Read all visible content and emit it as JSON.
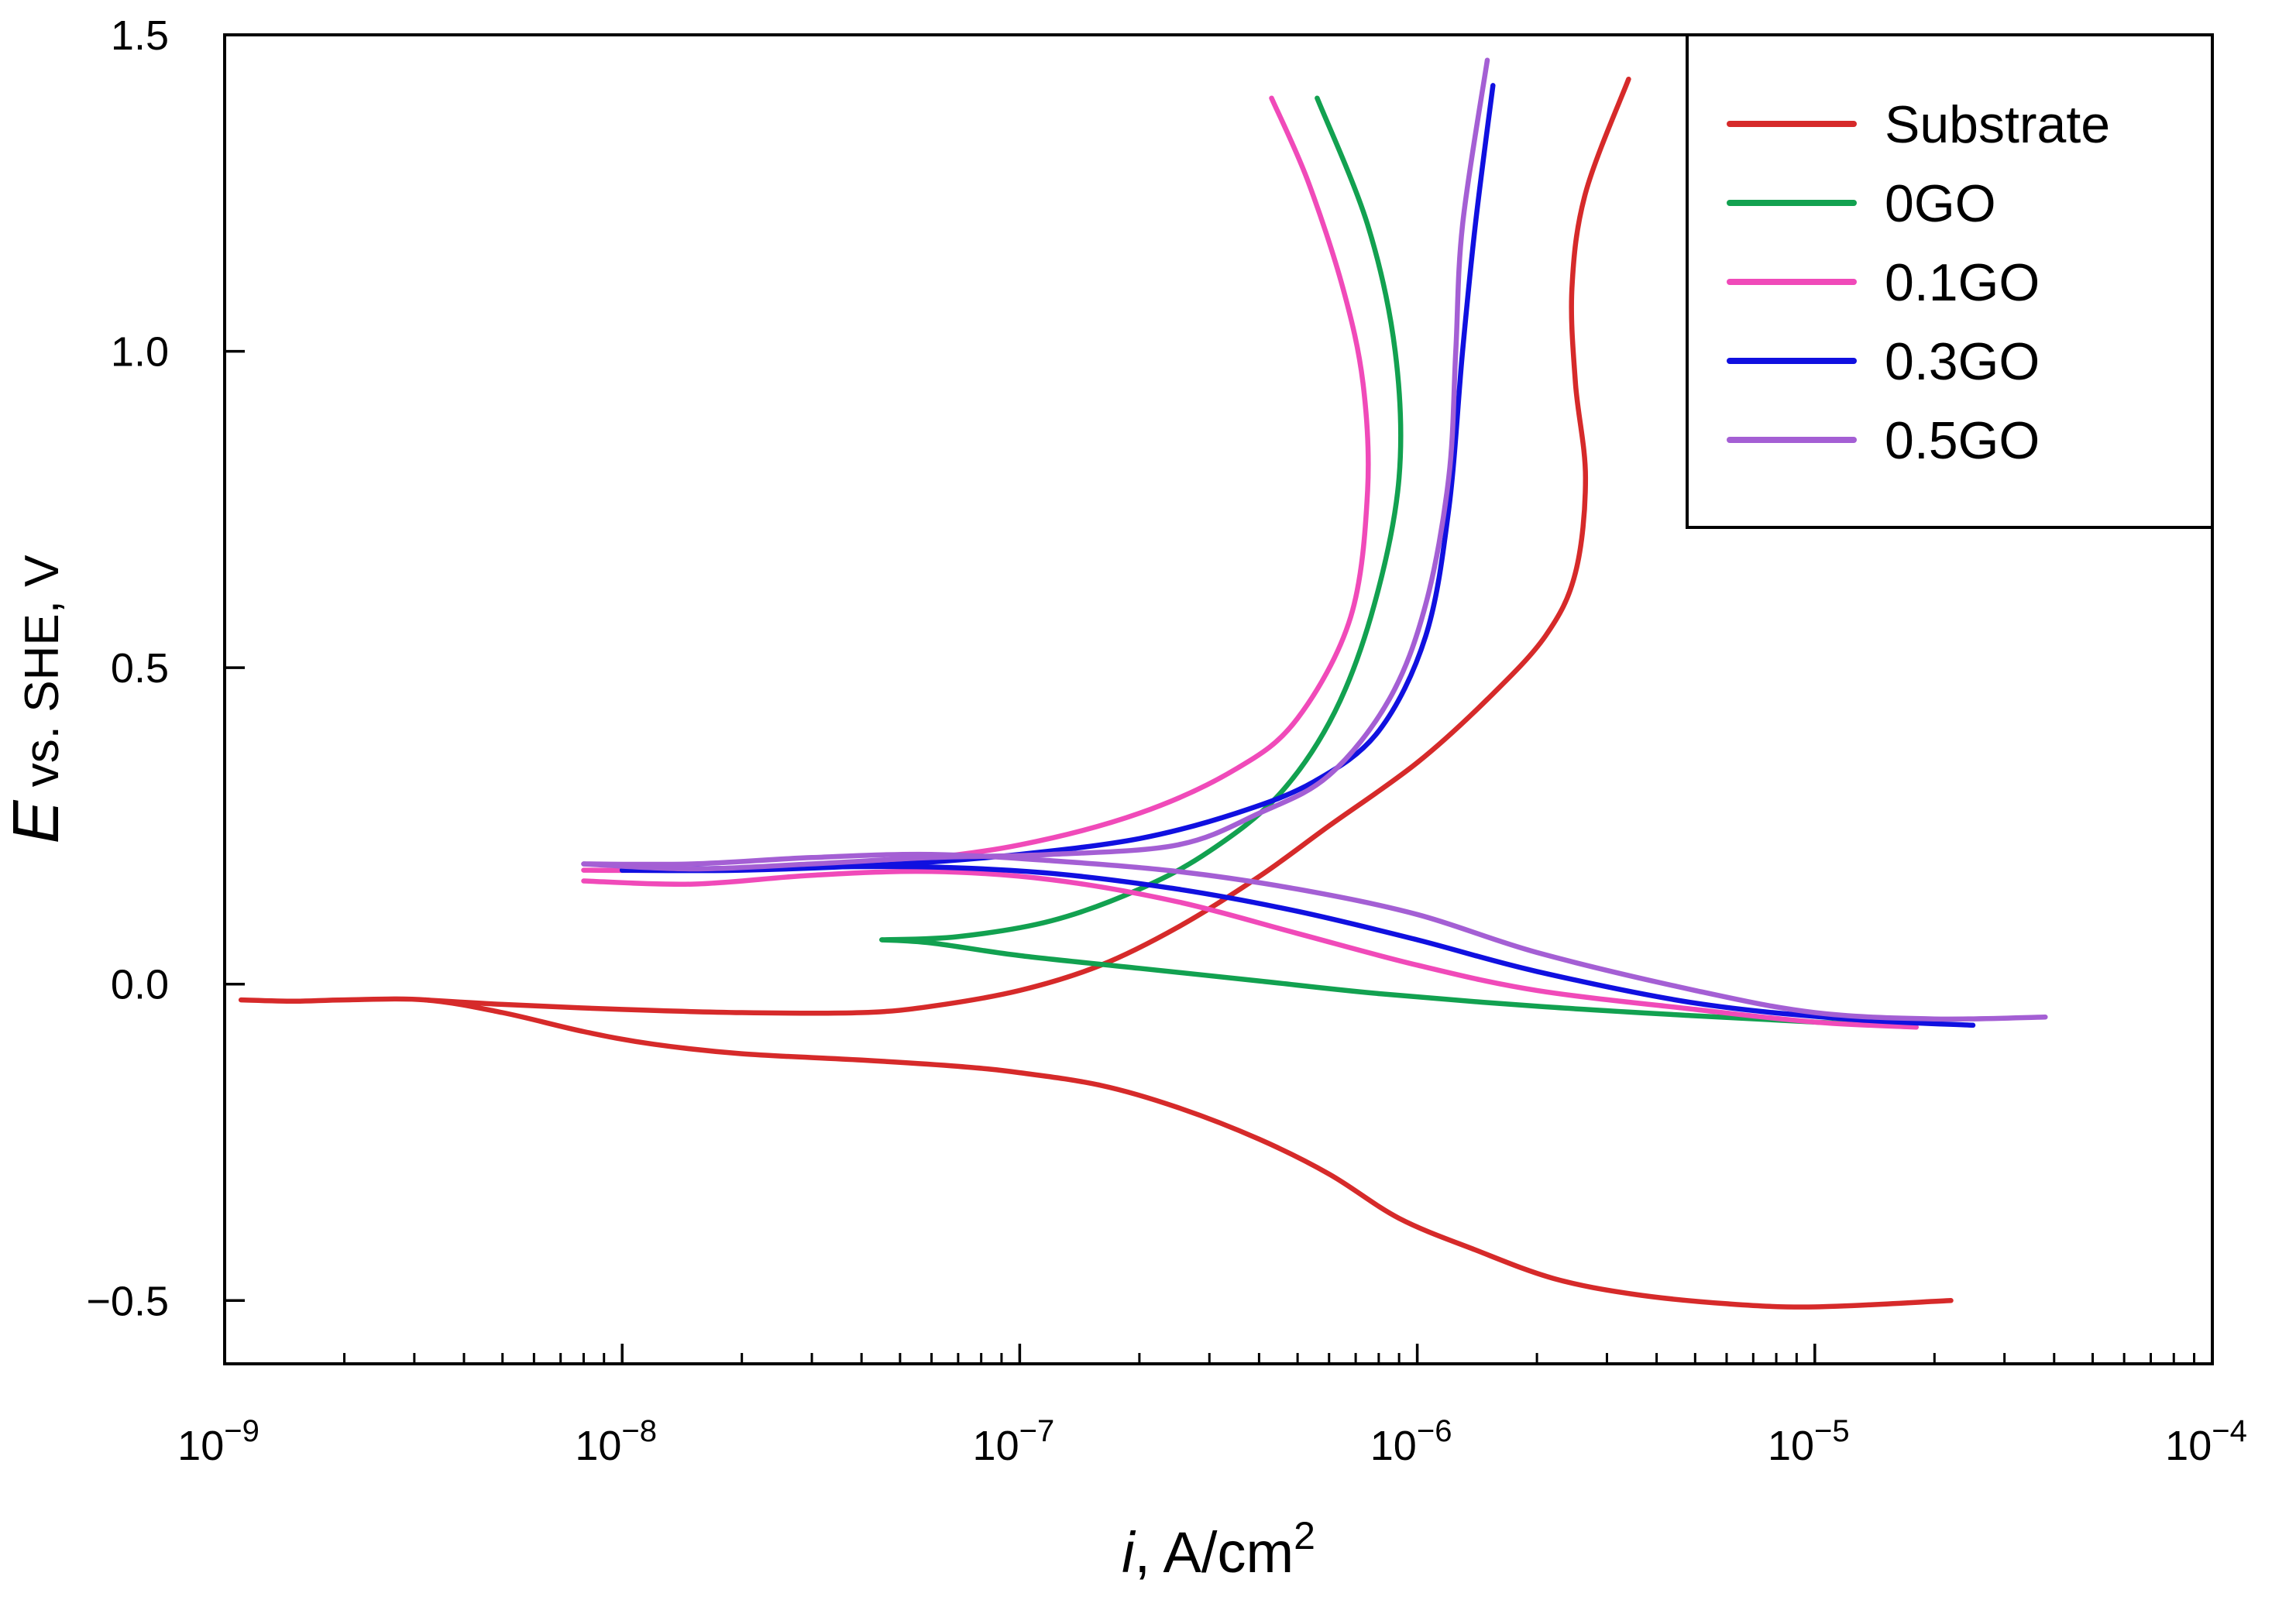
{
  "chart_data": {
    "type": "line",
    "xscale": "log",
    "xlim": [
      1e-09,
      0.0001
    ],
    "ylim": [
      -0.6,
      1.5
    ],
    "xlabel": {
      "italic": "i",
      "rest": ", A/cm",
      "sup": "2"
    },
    "ylabel": {
      "italic": "E",
      "rest": " vs. SHE, V"
    },
    "x_ticks": [
      {
        "value": 1e-09,
        "base": "10",
        "exp": "−9"
      },
      {
        "value": 1e-08,
        "base": "10",
        "exp": "−8"
      },
      {
        "value": 1e-07,
        "base": "10",
        "exp": "−7"
      },
      {
        "value": 1e-06,
        "base": "10",
        "exp": "−6"
      },
      {
        "value": 1e-05,
        "base": "10",
        "exp": "−5"
      },
      {
        "value": 0.0001,
        "base": "10",
        "exp": "−4"
      }
    ],
    "y_ticks": [
      {
        "value": 1.5,
        "label": "1.5"
      },
      {
        "value": 1.0,
        "label": "1.0"
      },
      {
        "value": 0.5,
        "label": "0.5"
      },
      {
        "value": 0.0,
        "label": "0.0"
      },
      {
        "value": -0.5,
        "label": "−0.5"
      }
    ],
    "legend_position": "top-right",
    "series": [
      {
        "name": "Substrate",
        "color": "#d62a2a",
        "points": [
          [
            1.1e-09,
            -0.025
          ],
          [
            1.5e-09,
            -0.027
          ],
          [
            2e-09,
            -0.025
          ],
          [
            3.2e-09,
            -0.025
          ],
          [
            5e-09,
            -0.045
          ],
          [
            8e-09,
            -0.075
          ],
          [
            1.2e-08,
            -0.095
          ],
          [
            2e-08,
            -0.11
          ],
          [
            4e-08,
            -0.12
          ],
          [
            7e-08,
            -0.13
          ],
          [
            1e-07,
            -0.14
          ],
          [
            1.6e-07,
            -0.16
          ],
          [
            2.5e-07,
            -0.195
          ],
          [
            4e-07,
            -0.245
          ],
          [
            6e-07,
            -0.3
          ],
          [
            9e-07,
            -0.37
          ],
          [
            1.4e-06,
            -0.42
          ],
          [
            2.2e-06,
            -0.465
          ],
          [
            3.5e-06,
            -0.49
          ],
          [
            6e-06,
            -0.505
          ],
          [
            1e-05,
            -0.51
          ],
          [
            2.2e-05,
            -0.5
          ]
        ]
      },
      {
        "name": "Substrate",
        "color": "#d62a2a",
        "points": [
          [
            3.2e-09,
            -0.025
          ],
          [
            5e-09,
            -0.032
          ],
          [
            1e-08,
            -0.04
          ],
          [
            2e-08,
            -0.045
          ],
          [
            4e-08,
            -0.045
          ],
          [
            6e-08,
            -0.035
          ],
          [
            1e-07,
            -0.01
          ],
          [
            1.6e-07,
            0.03
          ],
          [
            2.5e-07,
            0.09
          ],
          [
            4e-07,
            0.17
          ],
          [
            6e-07,
            0.25
          ],
          [
            1e-06,
            0.35
          ],
          [
            1.5e-06,
            0.45
          ],
          [
            2.1e-06,
            0.55
          ],
          [
            2.5e-06,
            0.65
          ],
          [
            2.65e-06,
            0.8
          ],
          [
            2.5e-06,
            0.95
          ],
          [
            2.45e-06,
            1.1
          ],
          [
            2.65e-06,
            1.25
          ],
          [
            3.4e-06,
            1.43
          ]
        ]
      },
      {
        "name": "0GO",
        "color": "#12a150",
        "points": [
          [
            1.65e-05,
            -0.065
          ],
          [
            1e-05,
            -0.06
          ],
          [
            5e-06,
            -0.05
          ],
          [
            2e-06,
            -0.035
          ],
          [
            8e-07,
            -0.015
          ],
          [
            4e-07,
            0.005
          ],
          [
            2e-07,
            0.025
          ],
          [
            1e-07,
            0.045
          ],
          [
            6e-08,
            0.065
          ],
          [
            4.5e-08,
            0.07
          ]
        ]
      },
      {
        "name": "0GO",
        "color": "#12a150",
        "points": [
          [
            4.5e-08,
            0.07
          ],
          [
            7e-08,
            0.075
          ],
          [
            1.2e-07,
            0.1
          ],
          [
            2e-07,
            0.15
          ],
          [
            3e-07,
            0.21
          ],
          [
            4.5e-07,
            0.3
          ],
          [
            6.2e-07,
            0.43
          ],
          [
            7.8e-07,
            0.6
          ],
          [
            9e-07,
            0.8
          ],
          [
            8.8e-07,
            1.0
          ],
          [
            7.5e-07,
            1.2
          ],
          [
            5.6e-07,
            1.4
          ]
        ]
      },
      {
        "name": "0.1GO",
        "color": "#f04ab9",
        "points": [
          [
            1.8e-05,
            -0.068
          ],
          [
            1e-05,
            -0.06
          ],
          [
            5e-06,
            -0.04
          ],
          [
            2e-06,
            -0.01
          ],
          [
            1e-06,
            0.03
          ],
          [
            5e-07,
            0.08
          ],
          [
            2.5e-07,
            0.13
          ],
          [
            1.2e-07,
            0.165
          ],
          [
            6e-08,
            0.178
          ],
          [
            3e-08,
            0.172
          ],
          [
            1.5e-08,
            0.158
          ],
          [
            8e-09,
            0.163
          ]
        ]
      },
      {
        "name": "0.1GO",
        "color": "#f04ab9",
        "points": [
          [
            8e-09,
            0.18
          ],
          [
            1.3e-08,
            0.18
          ],
          [
            2.5e-08,
            0.185
          ],
          [
            5e-08,
            0.195
          ],
          [
            1e-07,
            0.22
          ],
          [
            2e-07,
            0.27
          ],
          [
            3.5e-07,
            0.34
          ],
          [
            5e-07,
            0.42
          ],
          [
            6.8e-07,
            0.58
          ],
          [
            7.5e-07,
            0.78
          ],
          [
            7.3e-07,
            0.95
          ],
          [
            6.5e-07,
            1.1
          ],
          [
            5.3e-07,
            1.27
          ],
          [
            4.3e-07,
            1.4
          ]
        ]
      },
      {
        "name": "0.3GO",
        "color": "#1010e0",
        "points": [
          [
            2.5e-05,
            -0.065
          ],
          [
            1.2e-05,
            -0.055
          ],
          [
            5e-06,
            -0.03
          ],
          [
            2e-06,
            0.02
          ],
          [
            1e-06,
            0.07
          ],
          [
            5e-07,
            0.115
          ],
          [
            2.5e-07,
            0.15
          ],
          [
            1.2e-07,
            0.175
          ],
          [
            6e-08,
            0.185
          ],
          [
            3e-08,
            0.185
          ],
          [
            1.5e-08,
            0.182
          ],
          [
            1e-08,
            0.18
          ]
        ]
      },
      {
        "name": "0.3GO",
        "color": "#1010e0",
        "points": [
          [
            1e-08,
            0.18
          ],
          [
            2e-08,
            0.18
          ],
          [
            5e-08,
            0.19
          ],
          [
            1e-07,
            0.205
          ],
          [
            2e-07,
            0.23
          ],
          [
            3.5e-07,
            0.27
          ],
          [
            5.5e-07,
            0.32
          ],
          [
            8e-07,
            0.4
          ],
          [
            1.05e-06,
            0.55
          ],
          [
            1.2e-06,
            0.75
          ],
          [
            1.3e-06,
            1.0
          ],
          [
            1.4e-06,
            1.2
          ],
          [
            1.55e-06,
            1.42
          ]
        ]
      },
      {
        "name": "0.5GO",
        "color": "#a45fd4",
        "points": [
          [
            3.8e-05,
            -0.052
          ],
          [
            2e-05,
            -0.055
          ],
          [
            1e-05,
            -0.045
          ],
          [
            5e-06,
            -0.01
          ],
          [
            2e-06,
            0.05
          ],
          [
            1e-06,
            0.11
          ],
          [
            5e-07,
            0.15
          ],
          [
            2.5e-07,
            0.178
          ],
          [
            1.2e-07,
            0.195
          ],
          [
            6e-08,
            0.205
          ],
          [
            3e-08,
            0.2
          ],
          [
            1.5e-08,
            0.19
          ],
          [
            8e-09,
            0.19
          ]
        ]
      },
      {
        "name": "0.5GO",
        "color": "#a45fd4",
        "points": [
          [
            8e-09,
            0.19
          ],
          [
            1.5e-08,
            0.182
          ],
          [
            3e-08,
            0.19
          ],
          [
            6e-08,
            0.2
          ],
          [
            1.2e-07,
            0.205
          ],
          [
            2.5e-07,
            0.22
          ],
          [
            4e-07,
            0.27
          ],
          [
            6e-07,
            0.33
          ],
          [
            8.5e-07,
            0.45
          ],
          [
            1.05e-06,
            0.6
          ],
          [
            1.2e-06,
            0.8
          ],
          [
            1.25e-06,
            1.0
          ],
          [
            1.3e-06,
            1.2
          ],
          [
            1.5e-06,
            1.46
          ]
        ]
      }
    ],
    "legend": [
      {
        "name": "Substrate",
        "color": "#d62a2a"
      },
      {
        "name": "0GO",
        "color": "#12a150"
      },
      {
        "name": "0.1GO",
        "color": "#f04ab9"
      },
      {
        "name": "0.3GO",
        "color": "#1010e0"
      },
      {
        "name": "0.5GO",
        "color": "#a45fd4"
      }
    ]
  }
}
